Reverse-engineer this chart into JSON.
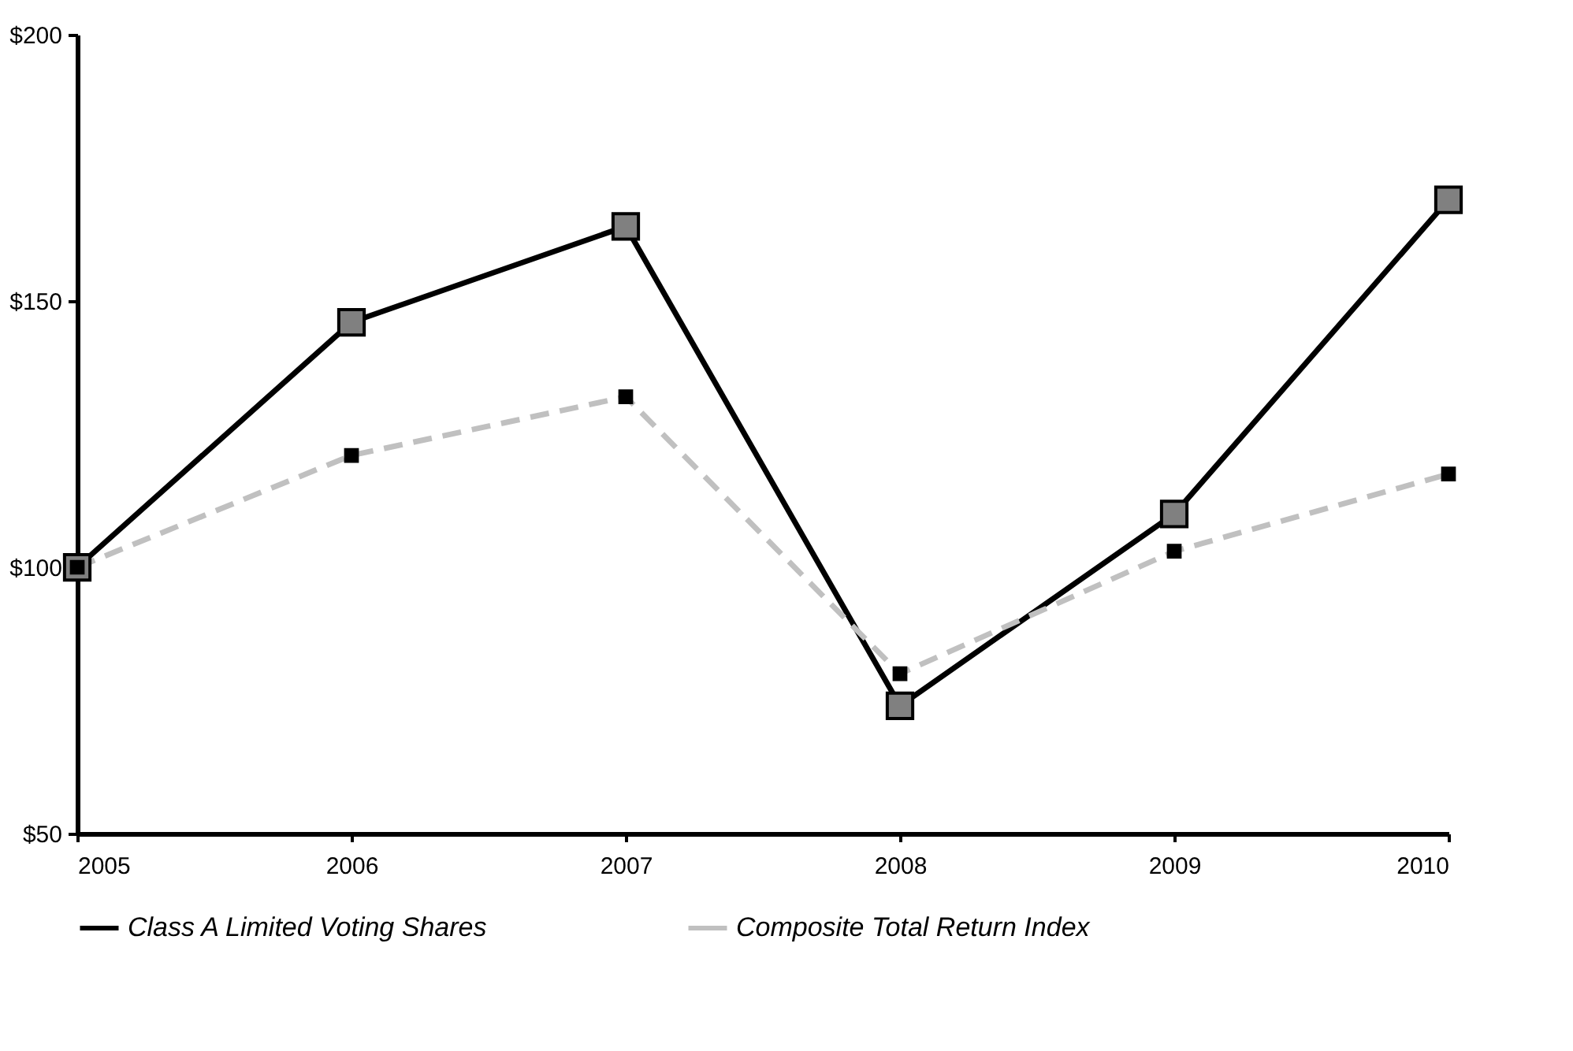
{
  "chart_data": {
    "type": "line",
    "x": [
      2005,
      2006,
      2007,
      2008,
      2009,
      2010
    ],
    "series": [
      {
        "name": "Class A Limited Voting Shares",
        "color": "#000000",
        "values": [
          100,
          146,
          164,
          74,
          110,
          169
        ],
        "line_style": "solid"
      },
      {
        "name": "Composite Total Return Index",
        "color": "#c0c0c0",
        "values": [
          100,
          121,
          132,
          80,
          103,
          117.5
        ],
        "line_style": "dashed"
      }
    ],
    "xlim": [
      2005,
      2010
    ],
    "xticks": [
      2005,
      2006,
      2007,
      2008,
      2009,
      2010
    ],
    "ylim": [
      50,
      200
    ],
    "yticks": [
      {
        "value": 50,
        "label": "$50"
      },
      {
        "value": 100,
        "label": "$100"
      },
      {
        "value": 150,
        "label": "$150"
      },
      {
        "value": 200,
        "label": "$200"
      }
    ],
    "marker": "square",
    "grid": false,
    "legend": "bottom"
  }
}
